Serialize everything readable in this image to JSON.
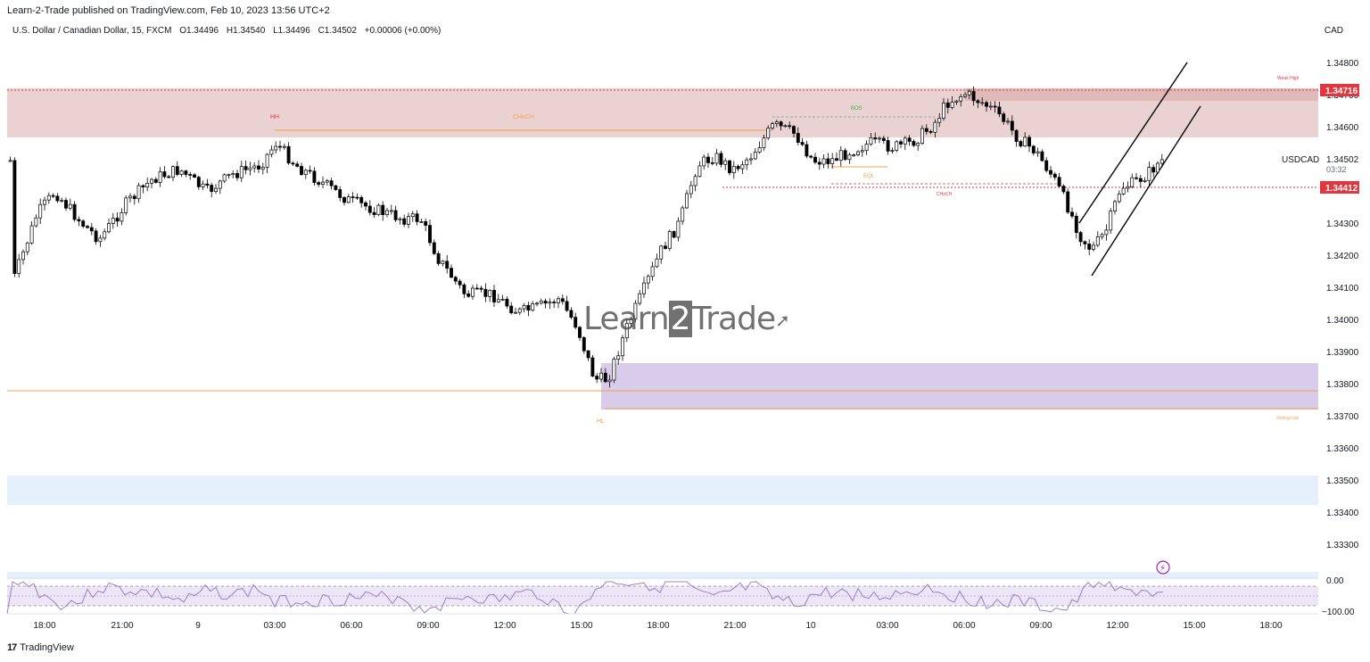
{
  "banner": "Learn-2-Trade published on TradingView.com, Feb 10, 2023 13:56 UTC+2",
  "ohlc": {
    "symbol": "U.S. Dollar / Canadian Dollar, 15, FXCM",
    "open": "O1.34496",
    "high": "H1.34540",
    "low": "L1.34496",
    "close": "C1.34502",
    "change": "+0.00006 (+0.00%)"
  },
  "currency": "CAD",
  "watermark": {
    "part1": "Learn",
    "part2": "2",
    "part3": "Trade"
  },
  "footer": {
    "brand": "TradingView",
    "icon": "tradingview-logo-icon"
  },
  "colors": {
    "up": "#ffffff",
    "down": "#000000",
    "supply_zone": "#e8c9c9",
    "demand_zone": "#d9ccea",
    "level_line": "#f5a04a",
    "red_dotted": "#e3373f",
    "rsi_line": "#9c7fc9",
    "rsi_band": "#ece6f7",
    "price_tag": "#e3373f"
  },
  "chart_data": {
    "type": "candlestick",
    "price_axis": {
      "ticks": [
        "1.34800",
        "1.34700",
        "1.34600",
        "1.34300",
        "1.34200",
        "1.34100",
        "1.34000",
        "1.33900",
        "1.33800",
        "1.33700",
        "1.33600",
        "1.33500",
        "1.33400",
        "1.33300"
      ],
      "range": [
        1.3325,
        1.3485
      ]
    },
    "time_axis": {
      "ticks": [
        "18:00",
        "21:00",
        "9",
        "03:00",
        "06:00",
        "09:00",
        "12:00",
        "15:00",
        "18:00",
        "21:00",
        "10",
        "03:00",
        "06:00",
        "09:00",
        "12:00",
        "15:00",
        "18:00"
      ]
    },
    "price_tags": [
      {
        "label": "1.34716",
        "value": 1.34716
      },
      {
        "label": "1.34412",
        "value": 1.34412
      }
    ],
    "current": {
      "symbol": "USDCAD",
      "price": "1.34502",
      "countdown": "03:32"
    },
    "annotations": [
      {
        "text": "HH"
      },
      {
        "text": "CHoCH"
      },
      {
        "text": "BOS"
      },
      {
        "text": "EQL"
      },
      {
        "text": "CHoCH"
      },
      {
        "text": "HL"
      },
      {
        "text": "Weak High"
      },
      {
        "text": "Strong Low"
      }
    ],
    "zones": [
      {
        "name": "supply",
        "from": 1.34567,
        "to": 1.34722
      },
      {
        "name": "demand",
        "from": 1.33727,
        "to": 1.33868
      }
    ],
    "levels": [
      {
        "name": "HL level",
        "value": 1.33782
      },
      {
        "name": "Strong Low level",
        "value": 1.3373
      }
    ],
    "rsi": {
      "ticks": [
        "0.00",
        "−100.00"
      ],
      "range": [
        -120,
        10
      ]
    }
  }
}
